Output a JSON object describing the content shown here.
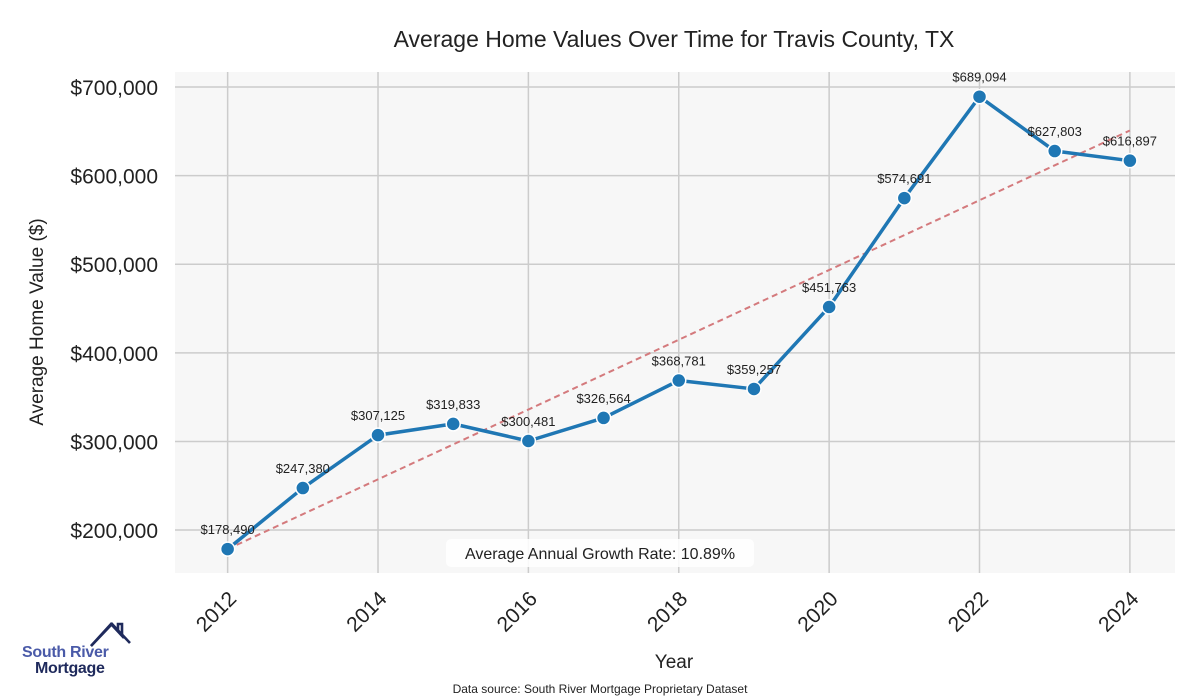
{
  "chart_data": {
    "type": "line",
    "title": "Average Home Values Over Time for Travis County, TX",
    "xlabel": "Year",
    "ylabel": "Average Home Value ($)",
    "x": [
      2012,
      2013,
      2014,
      2015,
      2016,
      2017,
      2018,
      2019,
      2020,
      2021,
      2022,
      2023,
      2024
    ],
    "values": [
      178490,
      247380,
      307125,
      319833,
      300481,
      326564,
      368781,
      359257,
      451763,
      574691,
      689094,
      627803,
      616897
    ],
    "data_labels": [
      "$178,490",
      "$247,380",
      "$307,125",
      "$319,833",
      "$300,481",
      "$326,564",
      "$368,781",
      "$359,257",
      "$451,763",
      "$574,691",
      "$689,094",
      "$627,803",
      "$616,897"
    ],
    "xticks": [
      "2012",
      "2014",
      "2016",
      "2018",
      "2020",
      "2022",
      "2024"
    ],
    "xtick_values": [
      2012,
      2014,
      2016,
      2018,
      2020,
      2022,
      2024
    ],
    "yticks": [
      "$200,000",
      "$300,000",
      "$400,000",
      "$500,000",
      "$600,000",
      "$700,000"
    ],
    "ytick_values": [
      200000,
      300000,
      400000,
      500000,
      600000,
      700000
    ],
    "xlim": [
      2011.3,
      2024.6
    ],
    "ylim": [
      151500,
      717000
    ],
    "grid": true,
    "trend": {
      "x": [
        2012,
        2024
      ],
      "y": [
        178490,
        651000
      ],
      "color": "#d47a7d"
    },
    "annotation": "Average Annual Growth Rate: 10.89%",
    "line_color": "#1f77b4",
    "source": "Data source: South River Mortgage Proprietary Dataset"
  },
  "logo": {
    "line1": "South River",
    "line2": "Mortgage"
  }
}
